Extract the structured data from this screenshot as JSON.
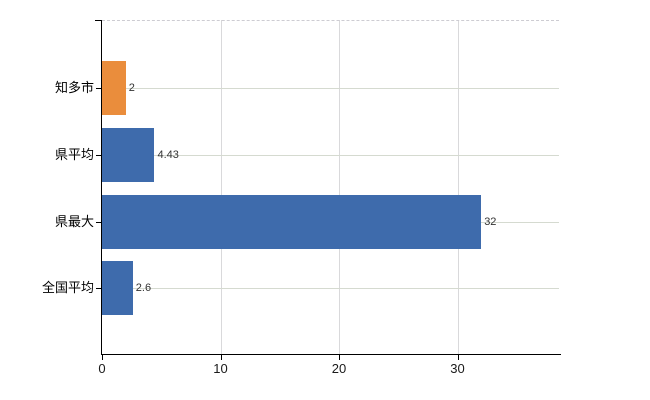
{
  "chart_data": {
    "type": "bar",
    "orientation": "horizontal",
    "title": "",
    "categories": [
      "知多市",
      "県平均",
      "県最大",
      "全国平均"
    ],
    "values": [
      2,
      4.43,
      32,
      2.6
    ],
    "value_labels": [
      "2",
      "4.43",
      "32",
      "2.6"
    ],
    "bar_colors": [
      "#EA8D3C",
      "#3E6BAC",
      "#3E6BAC",
      "#3E6BAC"
    ],
    "x_ticks": [
      "0",
      "10",
      "20",
      "30"
    ],
    "x_tick_values": [
      0,
      10,
      20,
      30
    ],
    "xlim": [
      0,
      38.6
    ],
    "grid": true,
    "legend": false,
    "colors": {
      "background": "#ffffff",
      "axis": "#000000",
      "horizontal_gridline": "#d5dad0",
      "vertical_gridline": "#d9d9db",
      "top_border": "#cdccd2",
      "category_label": "#000000",
      "value_label": "#333333",
      "tick_label": "#1a1a1a"
    }
  }
}
